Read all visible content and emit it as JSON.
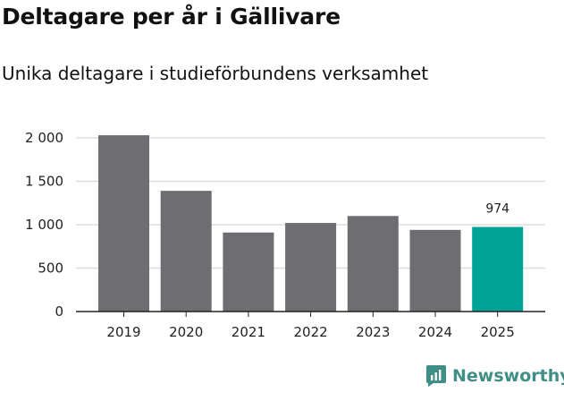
{
  "title": "Deltagare per år i Gällivare",
  "subtitle": "Unika deltagare i studieförbundens verksamhet",
  "brand": "Newsworthy",
  "colors": {
    "bar": "#6d6d72",
    "highlight": "#00a396",
    "grid": "#dddddd",
    "axis": "#222222",
    "brand": "#3f8f86"
  },
  "chart_data": {
    "type": "bar",
    "title": "Deltagare per år i Gällivare",
    "subtitle": "Unika deltagare i studieförbundens verksamhet",
    "categories": [
      "2019",
      "2020",
      "2021",
      "2022",
      "2023",
      "2024",
      "2025"
    ],
    "values": [
      2030,
      1390,
      910,
      1020,
      1100,
      940,
      974
    ],
    "ylim": [
      0,
      2000
    ],
    "yticks": [
      0,
      500,
      1000,
      1500,
      2000
    ],
    "ytick_labels": [
      "0",
      "500",
      "1 000",
      "1 500",
      "2 000"
    ],
    "grid": true,
    "highlight_index": 6,
    "data_labels": [
      {
        "index": 6,
        "text": "974"
      }
    ],
    "xlabel": "",
    "ylabel": ""
  }
}
